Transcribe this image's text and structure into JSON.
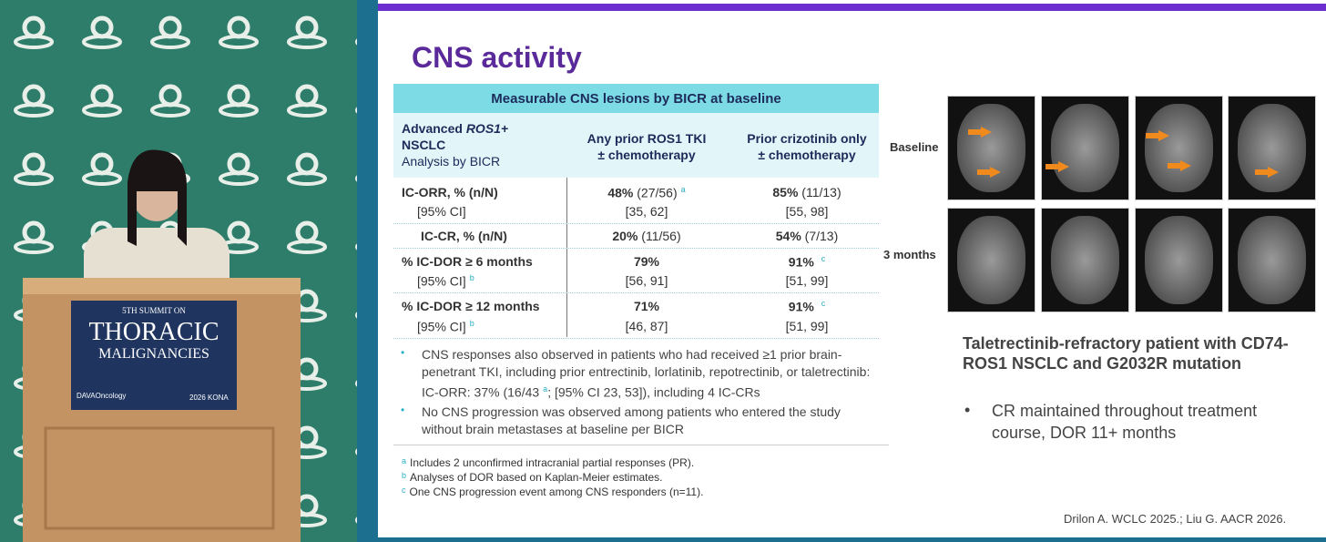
{
  "stage": {
    "sign": {
      "line1": "5TH SUMMIT ON",
      "line2": "THORACIC",
      "line3": "MALIGNANCIES",
      "brand": "DAVAOncology",
      "event": "2026 KONA"
    }
  },
  "slide": {
    "title": "CNS activity",
    "table": {
      "caption": "Measurable CNS lesions by BICR at baseline",
      "columns": [
        [
          "Advanced",
          "ROS1+",
          "NSCLC",
          "Analysis by BICR"
        ],
        [
          "Any prior ROS1 TKI",
          "± chemotherapy"
        ],
        [
          "Prior crizotinib only",
          "± chemotherapy"
        ]
      ],
      "rows": [
        {
          "label": "IC-ORR, % (n/N)",
          "ci_label": "[95% CI]",
          "c1": {
            "pct": "48%",
            "n": "(27/56)",
            "note": "a",
            "ci": "[35, 62]"
          },
          "c2": {
            "pct": "85%",
            "n": "(11/13)",
            "ci": "[55, 98]"
          }
        },
        {
          "label": "IC-CR, % (n/N)",
          "c1": {
            "pct": "20%",
            "n": "(11/56)"
          },
          "c2": {
            "pct": "54%",
            "n": "(7/13)"
          }
        },
        {
          "label": "% IC-DOR ≥ 6 months",
          "ci_label": "[95% CI]",
          "ci_note": "b",
          "c1": {
            "pct": "79%",
            "ci": "[56, 91]"
          },
          "c2": {
            "pct": "91%",
            "note": "c",
            "ci": "[51, 99]"
          }
        },
        {
          "label": "% IC-DOR ≥ 12 months",
          "ci_label": "[95% CI]",
          "ci_note": "b",
          "c1": {
            "pct": "71%",
            "ci": "[46, 87]"
          },
          "c2": {
            "pct": "91%",
            "note": "c",
            "ci": "[51, 99]"
          }
        }
      ]
    },
    "bullets": [
      [
        "CNS responses also observed in patients who had received ≥1 prior brain-penetrant TKI, including prior entrectinib, lorlatinib, repotrectinib, or taletrectinib: IC-ORR: 37% (16/43",
        "a",
        "; [95% CI 23, 53]), including 4 IC-CRs"
      ],
      [
        "No CNS progression was observed among patients who entered the study without brain metastases at baseline per BICR"
      ]
    ],
    "footnotes": [
      {
        "mark": "a",
        "text": "Includes 2 unconfirmed intracranial partial responses (PR)."
      },
      {
        "mark": "b",
        "text": "Analyses of DOR based on Kaplan-Meier estimates."
      },
      {
        "mark": "c",
        "text": "One CNS progression event among CNS responders (n=11)."
      }
    ],
    "case": {
      "timepoints": [
        "Baseline",
        "3 months"
      ],
      "heading": "Taletrectinib-refractory patient with CD74-ROS1 NSCLC and G2032R mutation",
      "bullet": "CR maintained throughout treatment course, DOR 11+ months"
    },
    "citation": "Drilon A. WCLC 2025.; Liu G. AACR 2026."
  }
}
